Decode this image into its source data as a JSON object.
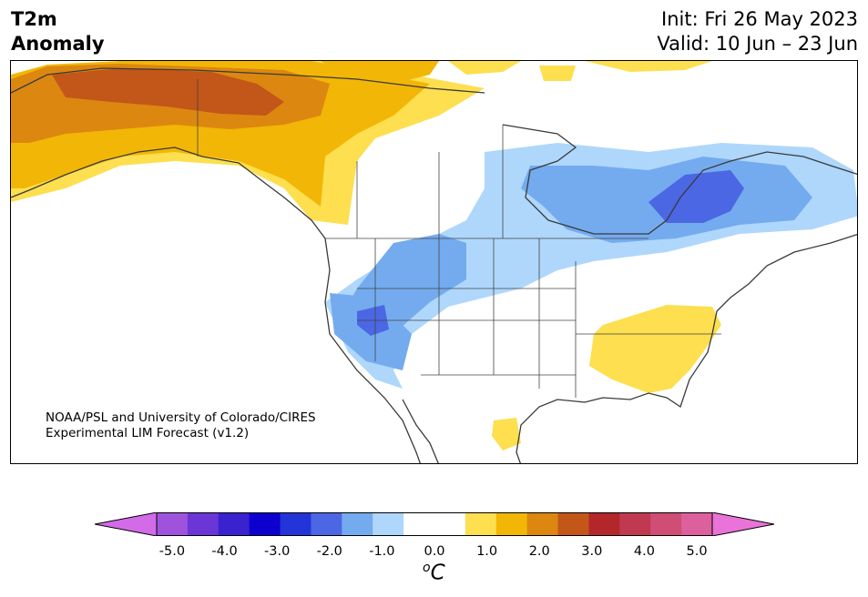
{
  "header": {
    "title_line1": "T2m",
    "title_line2": "Anomaly",
    "init": "Init: Fri 26 May 2023",
    "valid": "Valid: 10 Jun – 23 Jun"
  },
  "credit": {
    "line1": "NOAA/PSL and University of Colorado/CIRES",
    "line2": "Experimental LIM Forecast (v1.2)"
  },
  "colorbar": {
    "colors": [
      "#d26be8",
      "#9f53dd",
      "#6b36d6",
      "#3a22cf",
      "#0d00cf",
      "#2334d8",
      "#4b67e4",
      "#74abef",
      "#aed7fb",
      "#ffffff",
      "#ffffff",
      "#fddf4f",
      "#f2b606",
      "#dc8710",
      "#c35619",
      "#b3272a",
      "#c03951",
      "#d04d75",
      "#dd609e",
      "#e973d8"
    ],
    "ticks": [
      "-5.0",
      "-4.0",
      "-3.0",
      "-2.0",
      "-1.0",
      "0.0",
      "1.0",
      "2.0",
      "3.0",
      "4.0",
      "5.0"
    ],
    "unit_superscript": "o",
    "unit": "C"
  },
  "anomaly_regions": [
    {
      "region": "Alaska / Yukon",
      "level": "warm",
      "value_c": 2.25
    },
    {
      "region": "Western Canada",
      "level": "warm",
      "value_c": 1.0
    },
    {
      "region": "Hudson Bay / Quebec",
      "level": "cool",
      "value_c": -2.0
    },
    {
      "region": "Northern Plains",
      "level": "cool",
      "value_c": -1.0
    },
    {
      "region": "Great Basin",
      "level": "cool",
      "value_c": -2.0
    },
    {
      "region": "Southeast US",
      "level": "warm",
      "value_c": 0.75
    }
  ]
}
